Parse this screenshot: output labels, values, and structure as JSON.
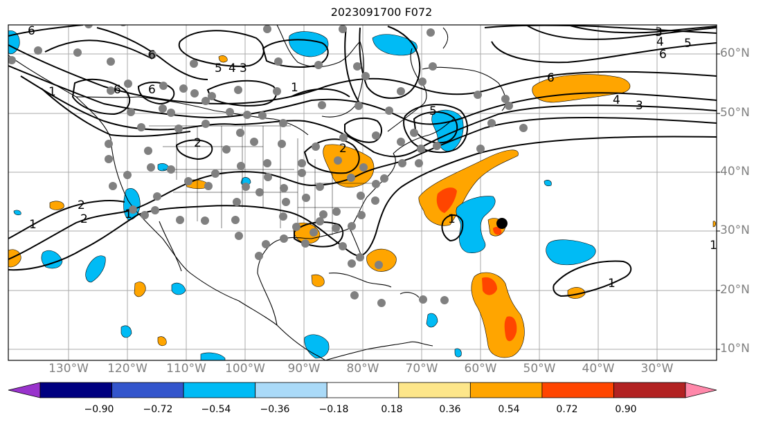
{
  "title": "2023091700 F072",
  "lat_labels": [
    "60°N",
    "50°N",
    "40°N",
    "30°N",
    "20°N",
    "10°N"
  ],
  "lon_labels": [
    "130°W",
    "120°W",
    "110°W",
    "100°W",
    "90°W",
    "80°W",
    "70°W",
    "60°W",
    "50°W",
    "40°W",
    "30°W"
  ],
  "colorbar": {
    "ticks": [
      "−0.90",
      "−0.72",
      "−0.54",
      "−0.36",
      "−0.18",
      "0.18",
      "0.36",
      "0.54",
      "0.72",
      "0.90"
    ],
    "colors": [
      "#9933cc",
      "#000080",
      "#3355cc",
      "#00bbf5",
      "#aadaf8",
      "#ffffff",
      "#fde68a",
      "#ffa500",
      "#ff4500",
      "#b22222",
      "#ff88aa"
    ],
    "extend": "both"
  },
  "contour_labels": [
    "6",
    "6",
    "6",
    "6",
    "5",
    "4",
    "3",
    "2",
    "1",
    "1",
    "2",
    "6",
    "5",
    "4",
    "3",
    "6",
    "5",
    "4",
    "3",
    "1",
    "2",
    "1",
    "2",
    "1",
    "1",
    "1"
  ],
  "colors": {
    "positive": "#ffa500",
    "positive_strong": "#ff4500",
    "negative": "#00bbf5",
    "points": "#808080",
    "marker": "#000000"
  }
}
